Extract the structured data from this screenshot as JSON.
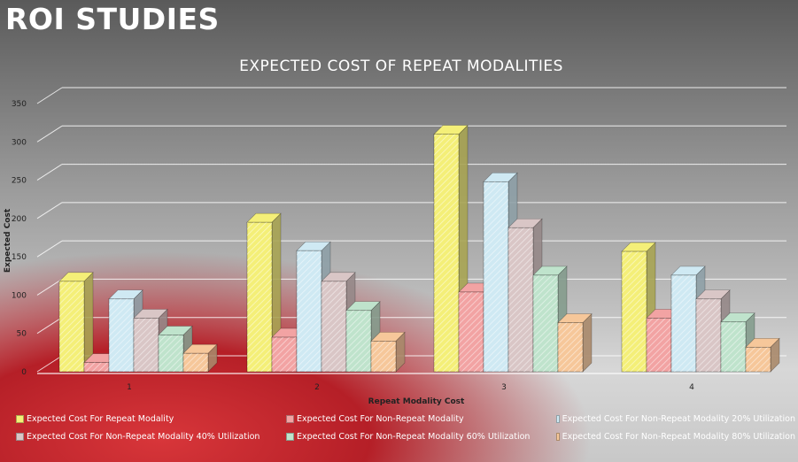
{
  "slide": {
    "title": "ROI STUDIES"
  },
  "chart_data": {
    "type": "bar",
    "title": "EXPECTED COST OF REPEAT MODALITIES",
    "xlabel": "Repeat Modality Cost",
    "ylabel": "Expected  Cost",
    "categories": [
      "1",
      "2",
      "3",
      "4"
    ],
    "ylim": [
      0,
      350
    ],
    "yticks": [
      0,
      50,
      100,
      150,
      200,
      250,
      300,
      350
    ],
    "grid": true,
    "legend_position": "bottom",
    "series": [
      {
        "name": "Expected Cost For Repeat Modality",
        "values": [
          118,
          195,
          310,
          157
        ],
        "color": "#f4ef78"
      },
      {
        "name": "Expected Cost For Non-Repeat Modality",
        "values": [
          12,
          45,
          104,
          70
        ],
        "color": "#f2a3a3"
      },
      {
        "name": "Expected Cost For Non-Repeat Modality 20% Utilization",
        "values": [
          95,
          158,
          248,
          126
        ],
        "color": "#cfe9f3"
      },
      {
        "name": "Expected Cost For Non-Repeat Modality 40% Utilization",
        "values": [
          70,
          118,
          188,
          95
        ],
        "color": "#d9c6c6"
      },
      {
        "name": "Expected Cost For Non-Repeat Modality 60% Utilization",
        "values": [
          48,
          80,
          126,
          65
        ],
        "color": "#bfe3cc"
      },
      {
        "name": "Expected Cost For Non-Repeat Modality 80% Utilization",
        "values": [
          24,
          40,
          64,
          32
        ],
        "color": "#f6c79a"
      }
    ]
  }
}
